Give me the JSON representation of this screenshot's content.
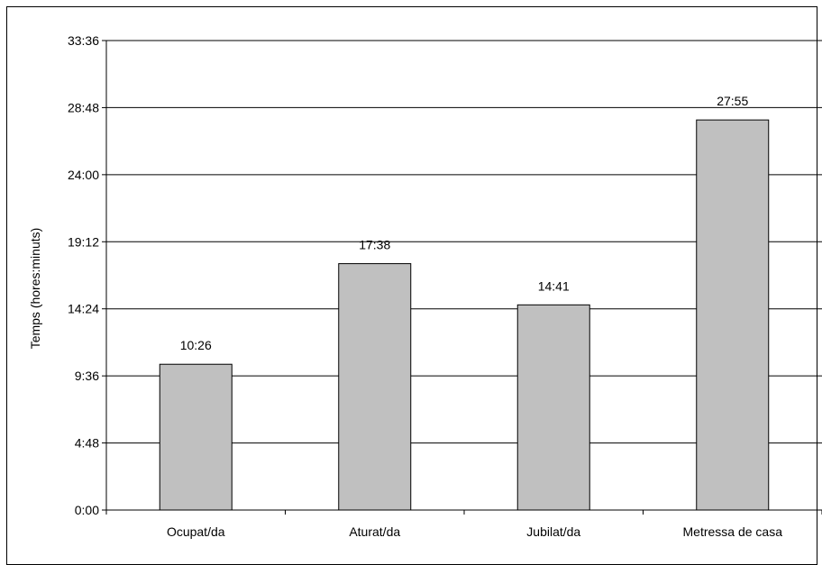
{
  "chart_data": {
    "type": "bar",
    "title": "",
    "xlabel": "",
    "ylabel": "Temps (hores:minuts)",
    "categories": [
      "Ocupat/da",
      "Aturat/da",
      "Jubilat/da",
      "Metressa de casa"
    ],
    "values": [
      10.433,
      17.633,
      14.683,
      27.917
    ],
    "data_labels": [
      "10:26",
      "17:38",
      "14:41",
      "27:55"
    ],
    "ylim": [
      0,
      33.6
    ],
    "yticks": [
      0,
      4.8,
      9.6,
      14.4,
      19.2,
      24.0,
      28.8,
      33.6
    ],
    "ytick_labels": [
      "0:00",
      "4:48",
      "9:36",
      "14:24",
      "19:12",
      "24:00",
      "28:48",
      "33:36"
    ],
    "grid": true,
    "legend": "none",
    "bar_color": "#c0c0c0",
    "bar_edge_color": "#000000"
  }
}
